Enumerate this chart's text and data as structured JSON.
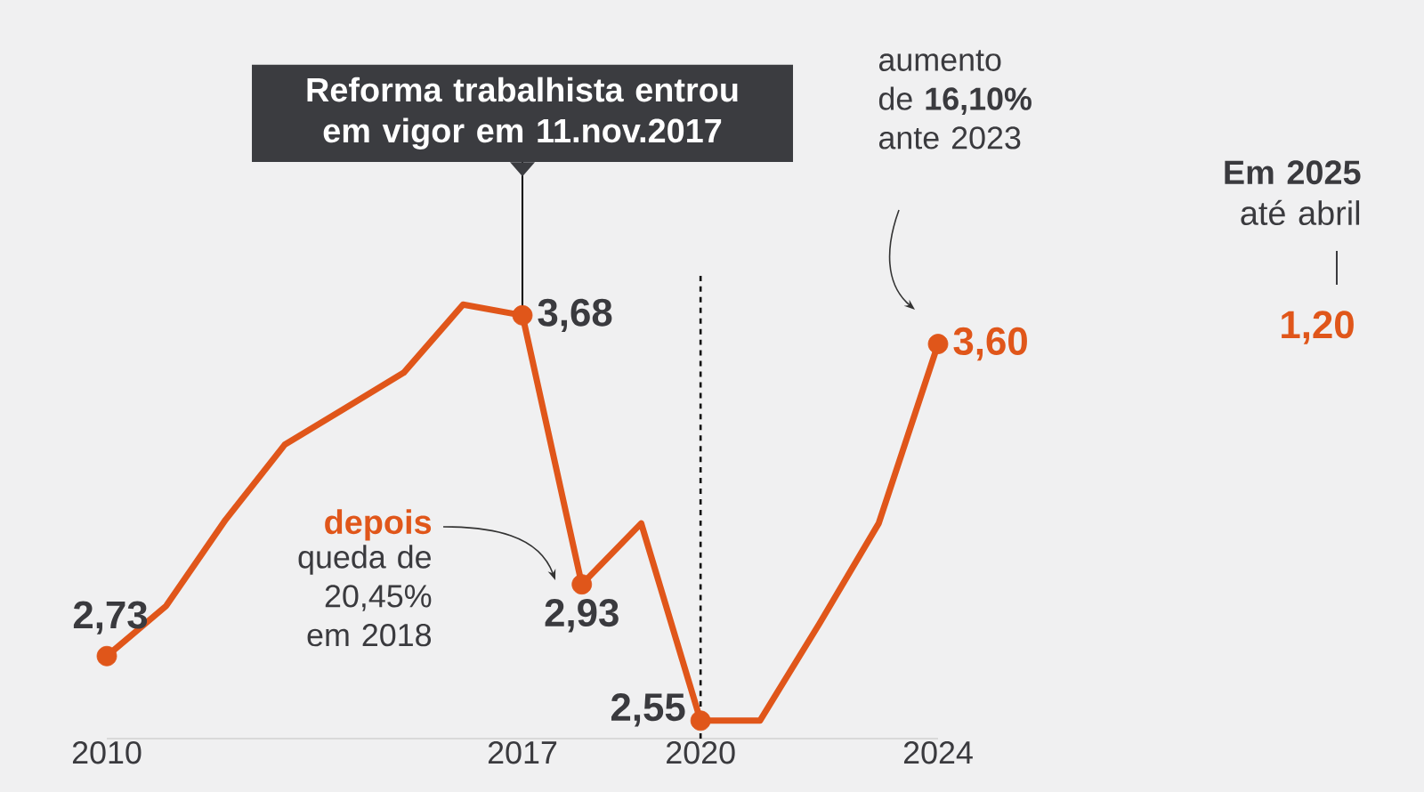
{
  "chart_data": {
    "type": "line",
    "x": [
      2010,
      2011,
      2012,
      2013,
      2014,
      2015,
      2016,
      2017,
      2018,
      2019,
      2020,
      2021,
      2022,
      2023,
      2024
    ],
    "values": [
      2.73,
      2.87,
      3.11,
      3.32,
      3.42,
      3.52,
      3.71,
      3.68,
      2.93,
      3.1,
      2.55,
      2.55,
      2.82,
      3.1,
      3.6
    ],
    "value_labels": [
      "2,73",
      null,
      null,
      null,
      null,
      null,
      null,
      "3,68",
      "2,93",
      null,
      "2,55",
      null,
      null,
      null,
      "3,60"
    ],
    "color": "#e0561a",
    "xlim": [
      2010,
      2024
    ],
    "ylim": [
      2.5,
      3.8
    ],
    "xticks": [
      2010,
      2017,
      2020,
      2024
    ],
    "ref_lines": [
      {
        "axis": "x",
        "value": 2020,
        "line_style": "dashed",
        "color": "#111111"
      }
    ],
    "annotations": [
      {
        "text": "Reforma trabalhista entrou em vigor em 11.nov.2017",
        "x": 2017,
        "y": 3.68
      },
      "depois",
      "queda de 20,45% em 2018",
      "aumento de **16,10%** ante 2023",
      "**Em 2025** até abril",
      "1,20"
    ]
  }
}
